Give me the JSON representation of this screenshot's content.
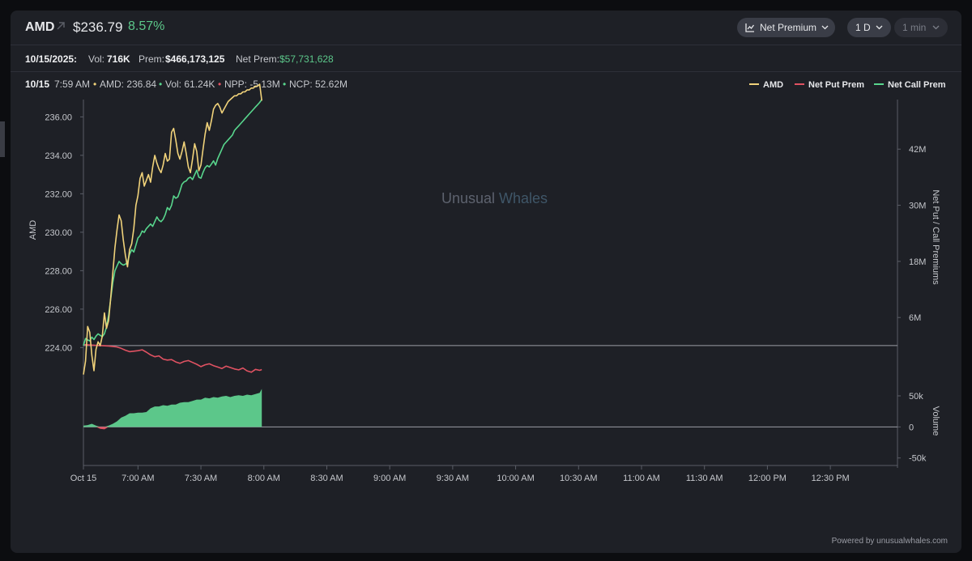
{
  "header": {
    "ticker": "AMD",
    "price": "$236.79",
    "change_pct": "8.57%",
    "chart_type_label": "Net Premium",
    "range_label": "1 D",
    "interval_label": "1 min"
  },
  "summary": {
    "date": "10/15/2025:",
    "vol_label": "Vol:",
    "vol_value": "716K",
    "prem_label": "Prem:",
    "prem_value": "$466,173,125",
    "net_prem_label": "Net Prem:",
    "net_prem_value": "$57,731,628"
  },
  "crosshair": {
    "date": "10/15",
    "time": "7:59 AM",
    "amd": "AMD: 236.84",
    "vol": "Vol: 61.24K",
    "npp": "NPP: -5.13M",
    "ncp": "NCP: 52.62M"
  },
  "colors": {
    "amd": "#f0d27a",
    "net_put": "#e05262",
    "net_call": "#58d68d",
    "volume_fill": "#5cc78a",
    "volume_neg": "#e05262"
  },
  "watermark": {
    "part1": "Unusual",
    "part2": "Whales"
  },
  "footer": "Powered by unusualwhales.com",
  "chart_data": {
    "type": "line",
    "legend": [
      "AMD",
      "Net Put Prem",
      "Net Call Prem"
    ],
    "legend_position": "top-right",
    "ylabel_left": "AMD",
    "ylabel_right": "Net Put / Call Premiums",
    "ylabel_volume": "Volume",
    "y_ticks_left": [
      "236.00",
      "234.00",
      "232.00",
      "230.00",
      "228.00",
      "226.00",
      "224.00"
    ],
    "y_ticks_left_values": [
      236,
      234,
      232,
      230,
      228,
      226,
      224
    ],
    "ylim_left": [
      222.5,
      236.9
    ],
    "y_ticks_right": [
      "42M",
      "30M",
      "18M",
      "6M"
    ],
    "y_ticks_right_values": [
      42,
      30,
      18,
      6
    ],
    "ylim_right_millions": [
      -6.6,
      52.6
    ],
    "y_ticks_volume": [
      "50k",
      "0",
      "-50k"
    ],
    "y_ticks_volume_values": [
      50,
      0,
      -50
    ],
    "ylim_volume_k": [
      -66,
      80
    ],
    "x_ticks": [
      "Oct 15",
      "7:00 AM",
      "7:30 AM",
      "8:00 AM",
      "8:30 AM",
      "9:00 AM",
      "9:30 AM",
      "10:00 AM",
      "10:30 AM",
      "11:00 AM",
      "11:30 AM",
      "12:00 PM",
      "12:30 PM"
    ],
    "x_tick_minutes": [
      -26,
      0,
      30,
      60,
      90,
      120,
      150,
      180,
      210,
      240,
      270,
      300,
      330
    ],
    "xlim_minutes": [
      -26,
      362
    ],
    "series": [
      {
        "name": "AMD",
        "x": [
          -26,
          -25,
          -24,
          -23,
          -22,
          -21,
          -20,
          -19,
          -18,
          -17,
          -16,
          -15,
          -14,
          -13,
          -12,
          -11,
          -10,
          -9,
          -8,
          -7,
          -6,
          -5,
          -4,
          -3,
          -2,
          -1,
          0,
          1,
          2,
          3,
          4,
          5,
          6,
          7,
          8,
          9,
          10,
          11,
          12,
          13,
          14,
          15,
          16,
          17,
          18,
          19,
          20,
          21,
          22,
          23,
          24,
          25,
          26,
          27,
          28,
          29,
          30,
          31,
          32,
          33,
          34,
          35,
          36,
          37,
          38,
          39,
          40,
          41,
          42,
          43,
          44,
          45,
          46,
          47,
          48,
          49,
          50,
          51,
          52,
          53,
          54,
          55,
          56,
          57,
          58,
          59
        ],
        "values": [
          222.6,
          223.3,
          225.1,
          224.8,
          223.6,
          222.8,
          223.9,
          224.3,
          224.1,
          224.6,
          225.8,
          225.0,
          225.4,
          226.6,
          227.9,
          229.2,
          230.1,
          230.9,
          230.6,
          229.6,
          228.8,
          228.2,
          229.1,
          229.4,
          230.2,
          231.4,
          231.9,
          232.8,
          233.1,
          232.4,
          232.7,
          233.0,
          232.6,
          233.4,
          234.0,
          233.6,
          233.3,
          233.1,
          233.5,
          234.1,
          233.7,
          233.8,
          235.2,
          235.4,
          234.8,
          234.1,
          233.8,
          234.2,
          234.7,
          234.1,
          233.4,
          233.1,
          233.8,
          234.6,
          234.2,
          233.2,
          233.5,
          234.3,
          235.1,
          235.7,
          235.3,
          235.8,
          236.4,
          236.6,
          236.7,
          236.5,
          236.2,
          236.4,
          236.6,
          236.8,
          236.9,
          237.0,
          237.1,
          237.1,
          237.2,
          237.2,
          237.3,
          237.3,
          237.4,
          237.4,
          237.5,
          237.5,
          237.6,
          237.6,
          237.7,
          236.84
        ]
      },
      {
        "name": "Net Put Prem",
        "x": [
          -26,
          -22,
          -18,
          -14,
          -10,
          -8,
          -6,
          -4,
          -2,
          0,
          2,
          4,
          6,
          8,
          10,
          12,
          14,
          16,
          18,
          20,
          22,
          24,
          26,
          28,
          30,
          32,
          34,
          36,
          38,
          40,
          42,
          44,
          46,
          48,
          50,
          52,
          54,
          56,
          58,
          59
        ],
        "values": [
          0.2,
          0.1,
          0.0,
          -0.1,
          -0.3,
          -0.6,
          -1.0,
          -1.3,
          -1.2,
          -1.1,
          -0.9,
          -1.4,
          -2.0,
          -2.4,
          -2.2,
          -2.9,
          -3.1,
          -3.0,
          -3.5,
          -3.8,
          -3.4,
          -3.2,
          -3.6,
          -4.0,
          -4.5,
          -4.1,
          -3.9,
          -4.3,
          -4.6,
          -4.9,
          -4.4,
          -4.7,
          -5.0,
          -5.2,
          -4.8,
          -5.4,
          -5.7,
          -5.1,
          -5.3,
          -5.13
        ]
      },
      {
        "name": "Net Call Prem",
        "x": [
          -26,
          -25,
          -24,
          -23,
          -22,
          -21,
          -20,
          -19,
          -18,
          -17,
          -16,
          -15,
          -14,
          -13,
          -12,
          -11,
          -10,
          -9,
          -8,
          -7,
          -6,
          -5,
          -4,
          -3,
          -2,
          -1,
          0,
          1,
          2,
          3,
          4,
          5,
          6,
          7,
          8,
          9,
          10,
          11,
          12,
          13,
          14,
          15,
          16,
          17,
          18,
          19,
          20,
          21,
          22,
          23,
          24,
          25,
          26,
          27,
          28,
          29,
          30,
          31,
          32,
          33,
          34,
          35,
          36,
          37,
          38,
          39,
          40,
          41,
          42,
          43,
          44,
          45,
          46,
          47,
          48,
          49,
          50,
          51,
          52,
          53,
          54,
          55,
          56,
          57,
          58,
          59
        ],
        "values": [
          0.0,
          1.5,
          1.2,
          1.0,
          1.8,
          1.3,
          2.0,
          2.5,
          2.2,
          1.9,
          2.5,
          4.0,
          6.5,
          10.0,
          13.5,
          16.0,
          17.0,
          18.0,
          17.5,
          17.2,
          17.4,
          17.8,
          19.5,
          20.5,
          20.0,
          21.5,
          23.0,
          23.5,
          24.5,
          24.2,
          25.0,
          25.5,
          26.0,
          25.5,
          26.5,
          27.5,
          26.8,
          26.5,
          27.0,
          28.0,
          29.5,
          29.0,
          30.0,
          32.0,
          31.5,
          31.8,
          33.0,
          34.5,
          35.0,
          35.2,
          35.8,
          36.0,
          35.5,
          36.5,
          37.5,
          36.0,
          35.8,
          37.0,
          38.0,
          38.5,
          38.2,
          38.8,
          39.5,
          38.6,
          40.0,
          41.0,
          42.0,
          43.0,
          43.5,
          44.0,
          44.5,
          45.0,
          46.0,
          46.5,
          47.0,
          47.5,
          48.0,
          48.5,
          49.0,
          49.5,
          50.0,
          50.5,
          51.0,
          51.5,
          52.0,
          52.62
        ]
      },
      {
        "name": "Volume",
        "x": [
          -26,
          -24,
          -22,
          -20,
          -18,
          -16,
          -14,
          -12,
          -10,
          -8,
          -6,
          -4,
          -2,
          0,
          2,
          4,
          6,
          8,
          10,
          12,
          14,
          16,
          18,
          20,
          22,
          24,
          26,
          28,
          30,
          32,
          34,
          36,
          38,
          40,
          42,
          44,
          46,
          48,
          50,
          52,
          54,
          56,
          58,
          59
        ],
        "values": [
          2,
          3,
          5,
          2,
          -3,
          -4,
          2,
          5,
          9,
          15,
          18,
          22,
          22,
          23,
          23,
          24,
          30,
          33,
          33,
          35,
          34,
          36,
          36,
          39,
          40,
          40,
          42,
          44,
          44,
          47,
          46,
          48,
          47,
          49,
          50,
          48,
          50,
          51,
          50,
          52,
          51,
          53,
          55,
          61.24
        ]
      }
    ]
  }
}
